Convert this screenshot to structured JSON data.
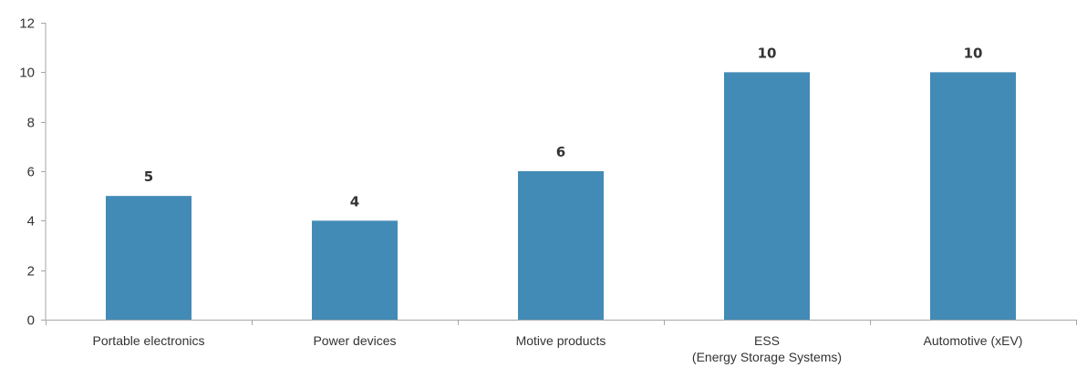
{
  "chart_data": {
    "type": "bar",
    "categories": [
      [
        "Portable electronics"
      ],
      [
        "Power devices"
      ],
      [
        "Motive products"
      ],
      [
        "ESS",
        "(Energy Storage Systems)"
      ],
      [
        "Automotive (xEV)"
      ]
    ],
    "values": [
      5,
      4,
      6,
      10,
      10
    ],
    "data_labels": [
      "5",
      "4",
      "6",
      "10",
      "10"
    ],
    "ylim": [
      0,
      12
    ],
    "yticks": [
      0,
      2,
      4,
      6,
      8,
      10,
      12
    ],
    "title": "",
    "xlabel": "",
    "ylabel": "",
    "grid": false,
    "legend": "none",
    "colors": {
      "bar": "#428bb6",
      "axis": "#a6a6a6",
      "text": "#333333"
    }
  }
}
